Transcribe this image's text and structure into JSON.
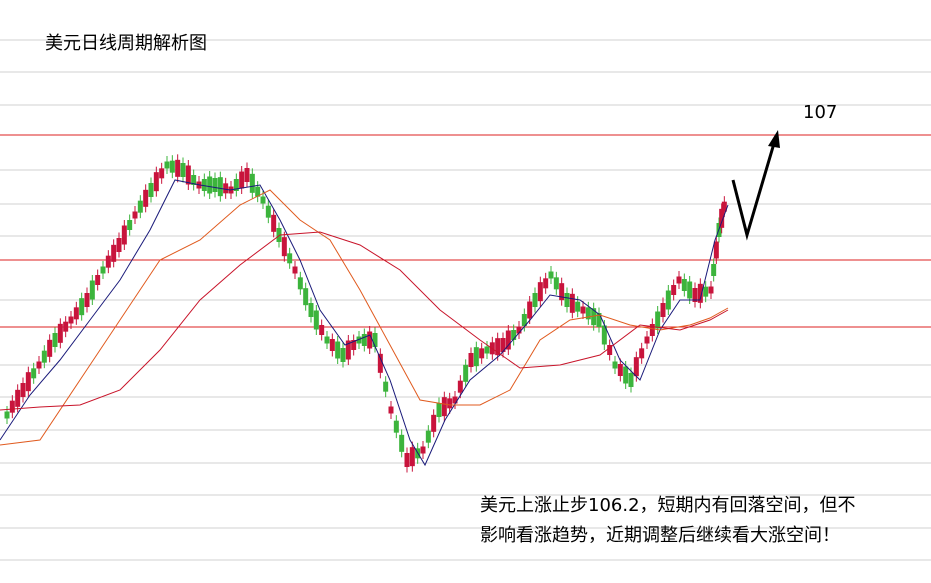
{
  "title": "美元日线周期解析图",
  "target_label": "107",
  "note": {
    "lines": [
      "美元上涨止步106.2，短期内有回落空间，但不",
      "影响看涨趋势，近期调整后继续看大涨空间！"
    ]
  }
}
